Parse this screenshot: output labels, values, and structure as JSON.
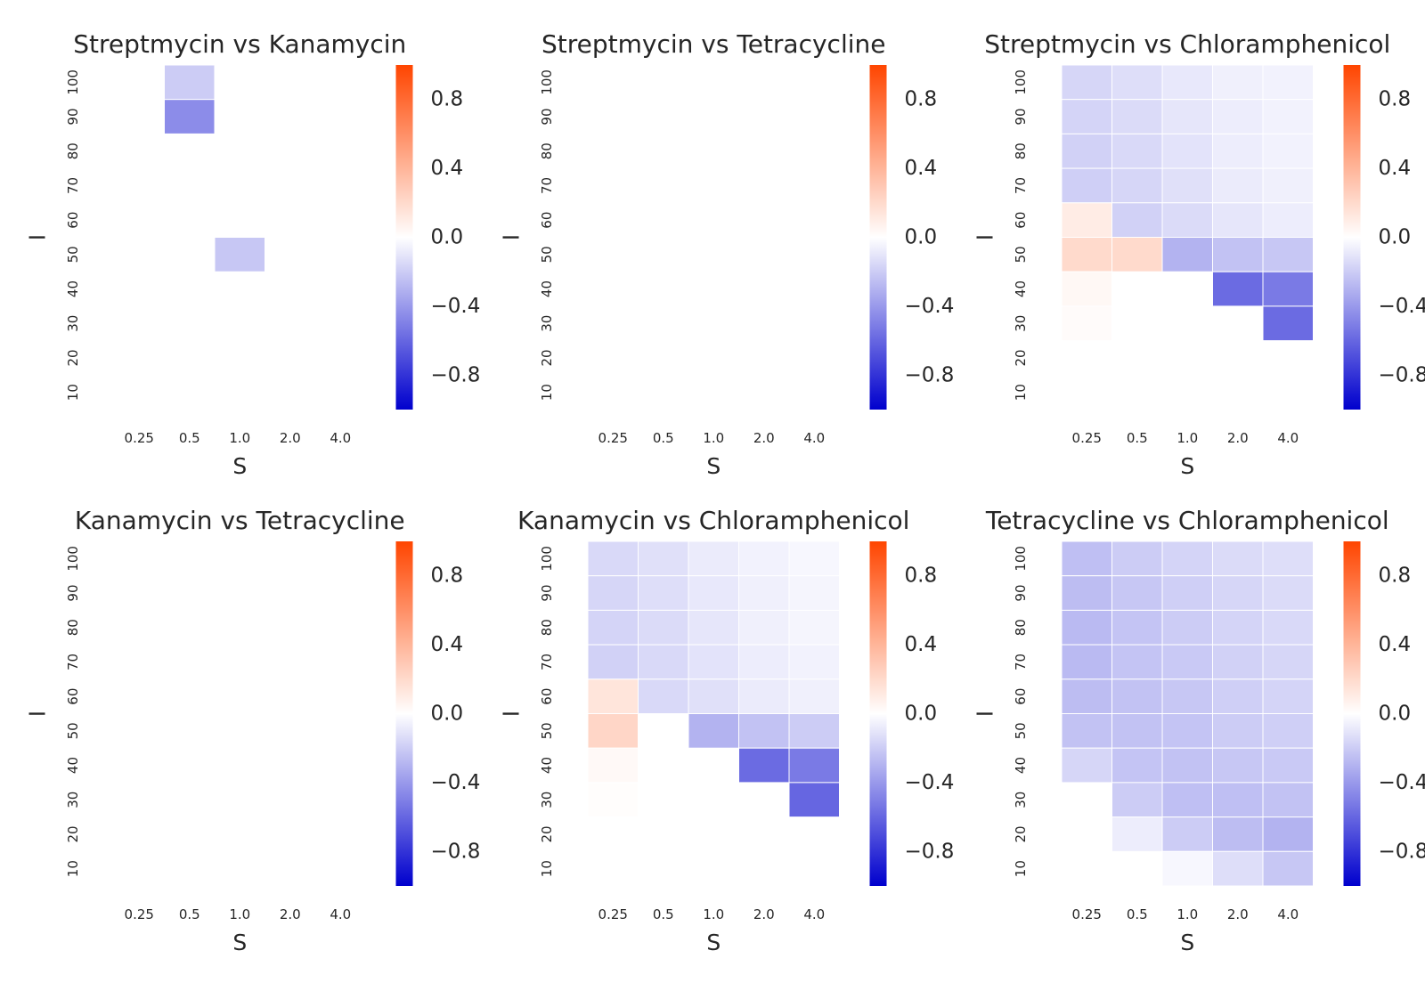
{
  "figure": {
    "colormap": {
      "low": "#0000cd",
      "mid": "#ffffff",
      "high": "#ff4500"
    },
    "vmin": -1.0,
    "vmax": 1.0
  },
  "chart_data": [
    {
      "type": "heatmap",
      "title": "Streptmycin vs Kanamycin",
      "xlabel": "S",
      "ylabel": "I",
      "x_ticks": [
        "0.25",
        "0.5",
        "1.0",
        "2.0",
        "4.0"
      ],
      "y_ticks": [
        "100",
        "90",
        "80",
        "70",
        "60",
        "50",
        "40",
        "30",
        "20",
        "10"
      ],
      "colorbar_ticks": [
        "0.8",
        "0.4",
        "0.0",
        "−0.4",
        "−0.8"
      ],
      "values": [
        [
          null,
          -0.2,
          null,
          null,
          null
        ],
        [
          null,
          -0.45,
          null,
          null,
          null
        ],
        [
          null,
          null,
          null,
          null,
          null
        ],
        [
          null,
          null,
          null,
          null,
          null
        ],
        [
          null,
          null,
          null,
          null,
          null
        ],
        [
          null,
          null,
          -0.22,
          null,
          null
        ],
        [
          null,
          null,
          null,
          null,
          null
        ],
        [
          null,
          null,
          null,
          null,
          null
        ],
        [
          null,
          null,
          null,
          null,
          null
        ],
        [
          null,
          null,
          null,
          null,
          null
        ]
      ]
    },
    {
      "type": "heatmap",
      "title": "Streptmycin vs Tetracycline",
      "xlabel": "S",
      "ylabel": "I",
      "x_ticks": [
        "0.25",
        "0.5",
        "1.0",
        "2.0",
        "4.0"
      ],
      "y_ticks": [
        "100",
        "90",
        "80",
        "70",
        "60",
        "50",
        "40",
        "30",
        "20",
        "10"
      ],
      "colorbar_ticks": [
        "0.8",
        "0.4",
        "0.0",
        "−0.4",
        "−0.8"
      ],
      "values": [
        [
          null,
          null,
          null,
          null,
          null
        ],
        [
          null,
          null,
          null,
          null,
          null
        ],
        [
          null,
          null,
          null,
          null,
          null
        ],
        [
          null,
          null,
          null,
          null,
          null
        ],
        [
          null,
          null,
          null,
          null,
          null
        ],
        [
          null,
          null,
          null,
          null,
          null
        ],
        [
          null,
          null,
          null,
          null,
          null
        ],
        [
          null,
          null,
          null,
          null,
          null
        ],
        [
          null,
          null,
          null,
          null,
          null
        ],
        [
          null,
          null,
          null,
          null,
          null
        ]
      ]
    },
    {
      "type": "heatmap",
      "title": "Streptmycin vs Chloramphenicol",
      "xlabel": "S",
      "ylabel": "I",
      "x_ticks": [
        "0.25",
        "0.5",
        "1.0",
        "2.0",
        "4.0"
      ],
      "y_ticks": [
        "100",
        "90",
        "80",
        "70",
        "60",
        "50",
        "40",
        "30",
        "20",
        "10"
      ],
      "colorbar_ticks": [
        "0.8",
        "0.4",
        "0.0",
        "−0.4",
        "−0.8"
      ],
      "values": [
        [
          -0.16,
          -0.13,
          -0.09,
          -0.06,
          -0.05
        ],
        [
          -0.17,
          -0.14,
          -0.1,
          -0.07,
          -0.05
        ],
        [
          -0.18,
          -0.15,
          -0.11,
          -0.07,
          -0.05
        ],
        [
          -0.19,
          -0.16,
          -0.12,
          -0.08,
          -0.06
        ],
        [
          0.1,
          -0.18,
          -0.14,
          -0.1,
          -0.07
        ],
        [
          0.2,
          0.2,
          -0.3,
          -0.24,
          -0.22
        ],
        [
          0.04,
          null,
          null,
          -0.58,
          -0.52
        ],
        [
          0.02,
          null,
          null,
          null,
          -0.58
        ],
        [
          null,
          null,
          null,
          null,
          null
        ],
        [
          null,
          null,
          null,
          null,
          null
        ]
      ]
    },
    {
      "type": "heatmap",
      "title": "Kanamycin vs Tetracycline",
      "xlabel": "S",
      "ylabel": "I",
      "x_ticks": [
        "0.25",
        "0.5",
        "1.0",
        "2.0",
        "4.0"
      ],
      "y_ticks": [
        "100",
        "90",
        "80",
        "70",
        "60",
        "50",
        "40",
        "30",
        "20",
        "10"
      ],
      "colorbar_ticks": [
        "0.8",
        "0.4",
        "0.0",
        "−0.4",
        "−0.8"
      ],
      "values": [
        [
          null,
          null,
          null,
          null,
          null
        ],
        [
          null,
          null,
          null,
          null,
          null
        ],
        [
          null,
          null,
          null,
          null,
          null
        ],
        [
          null,
          null,
          null,
          null,
          null
        ],
        [
          null,
          null,
          null,
          null,
          null
        ],
        [
          null,
          null,
          null,
          null,
          null
        ],
        [
          null,
          null,
          null,
          null,
          null
        ],
        [
          null,
          null,
          null,
          null,
          null
        ],
        [
          null,
          null,
          null,
          null,
          null
        ],
        [
          null,
          null,
          null,
          null,
          null
        ]
      ]
    },
    {
      "type": "heatmap",
      "title": "Kanamycin vs Chloramphenicol",
      "xlabel": "S",
      "ylabel": "I",
      "x_ticks": [
        "0.25",
        "0.5",
        "1.0",
        "2.0",
        "4.0"
      ],
      "y_ticks": [
        "100",
        "90",
        "80",
        "70",
        "60",
        "50",
        "40",
        "30",
        "20",
        "10"
      ],
      "colorbar_ticks": [
        "0.8",
        "0.4",
        "0.0",
        "−0.4",
        "−0.8"
      ],
      "values": [
        [
          -0.15,
          -0.12,
          -0.08,
          -0.05,
          -0.03
        ],
        [
          -0.16,
          -0.13,
          -0.09,
          -0.06,
          -0.04
        ],
        [
          -0.17,
          -0.14,
          -0.1,
          -0.06,
          -0.04
        ],
        [
          -0.18,
          -0.15,
          -0.11,
          -0.07,
          -0.05
        ],
        [
          0.14,
          -0.15,
          -0.12,
          -0.08,
          -0.06
        ],
        [
          0.22,
          null,
          -0.3,
          -0.24,
          -0.2
        ],
        [
          0.03,
          null,
          null,
          -0.58,
          -0.52
        ],
        [
          0.01,
          null,
          null,
          null,
          -0.6
        ],
        [
          null,
          null,
          null,
          null,
          null
        ],
        [
          null,
          null,
          null,
          null,
          null
        ]
      ]
    },
    {
      "type": "heatmap",
      "title": "Tetracycline vs Chloramphenicol",
      "xlabel": "S",
      "ylabel": "I",
      "x_ticks": [
        "0.25",
        "0.5",
        "1.0",
        "2.0",
        "4.0"
      ],
      "y_ticks": [
        "100",
        "90",
        "80",
        "70",
        "60",
        "50",
        "40",
        "30",
        "20",
        "10"
      ],
      "colorbar_ticks": [
        "0.8",
        "0.4",
        "0.0",
        "−0.4",
        "−0.8"
      ],
      "values": [
        [
          -0.25,
          -0.2,
          -0.17,
          -0.14,
          -0.13
        ],
        [
          -0.26,
          -0.22,
          -0.19,
          -0.16,
          -0.14
        ],
        [
          -0.27,
          -0.23,
          -0.2,
          -0.17,
          -0.15
        ],
        [
          -0.27,
          -0.23,
          -0.21,
          -0.18,
          -0.16
        ],
        [
          -0.26,
          -0.24,
          -0.22,
          -0.19,
          -0.17
        ],
        [
          -0.24,
          -0.24,
          -0.23,
          -0.2,
          -0.19
        ],
        [
          -0.16,
          -0.23,
          -0.24,
          -0.22,
          -0.21
        ],
        [
          null,
          -0.2,
          -0.25,
          -0.25,
          -0.24
        ],
        [
          null,
          -0.07,
          -0.2,
          -0.26,
          -0.3
        ],
        [
          null,
          null,
          -0.03,
          -0.13,
          -0.22
        ]
      ]
    }
  ]
}
